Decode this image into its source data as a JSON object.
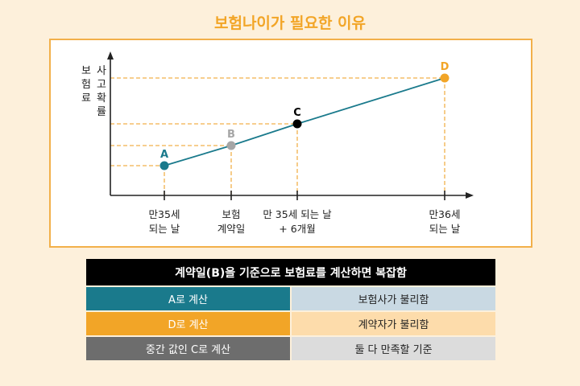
{
  "title": "보험나이가 필요한 이유",
  "diagram": {
    "y_axis_label_col1": [
      "보",
      "험",
      "료"
    ],
    "y_axis_label_col2": [
      "사",
      "고",
      "확",
      "률"
    ],
    "points": [
      {
        "label": "A",
        "color": "#1a7a8c"
      },
      {
        "label": "B",
        "color": "#a6a6a6"
      },
      {
        "label": "C",
        "color": "#000000"
      },
      {
        "label": "D",
        "color": "#f2a527"
      }
    ],
    "x_labels": [
      [
        "만35세",
        "되는 날"
      ],
      [
        "보험",
        "계약일"
      ],
      [
        "만 35세 되는 날",
        "+ 6개월"
      ],
      [
        "만36세",
        "되는 날"
      ]
    ],
    "line_color": "#1a7a8c",
    "guide_color": "#f2b04a"
  },
  "table": {
    "header": "계약일(B)을 기준으로 보험료를 계산하면 복잡함",
    "rows": [
      {
        "left": "A로 계산",
        "right": "보험사가 불리함",
        "left_color": "#1a7a8c",
        "right_color": "#c9d9e3"
      },
      {
        "left": "D로 계산",
        "right": "계약자가 불리함",
        "left_color": "#f2a527",
        "right_color": "#fddcab"
      },
      {
        "left": "중간 값인 C로 계산",
        "right": "둘 다 만족할 기준",
        "left_color": "#6d6d6d",
        "right_color": "#dcdcdc"
      }
    ]
  }
}
